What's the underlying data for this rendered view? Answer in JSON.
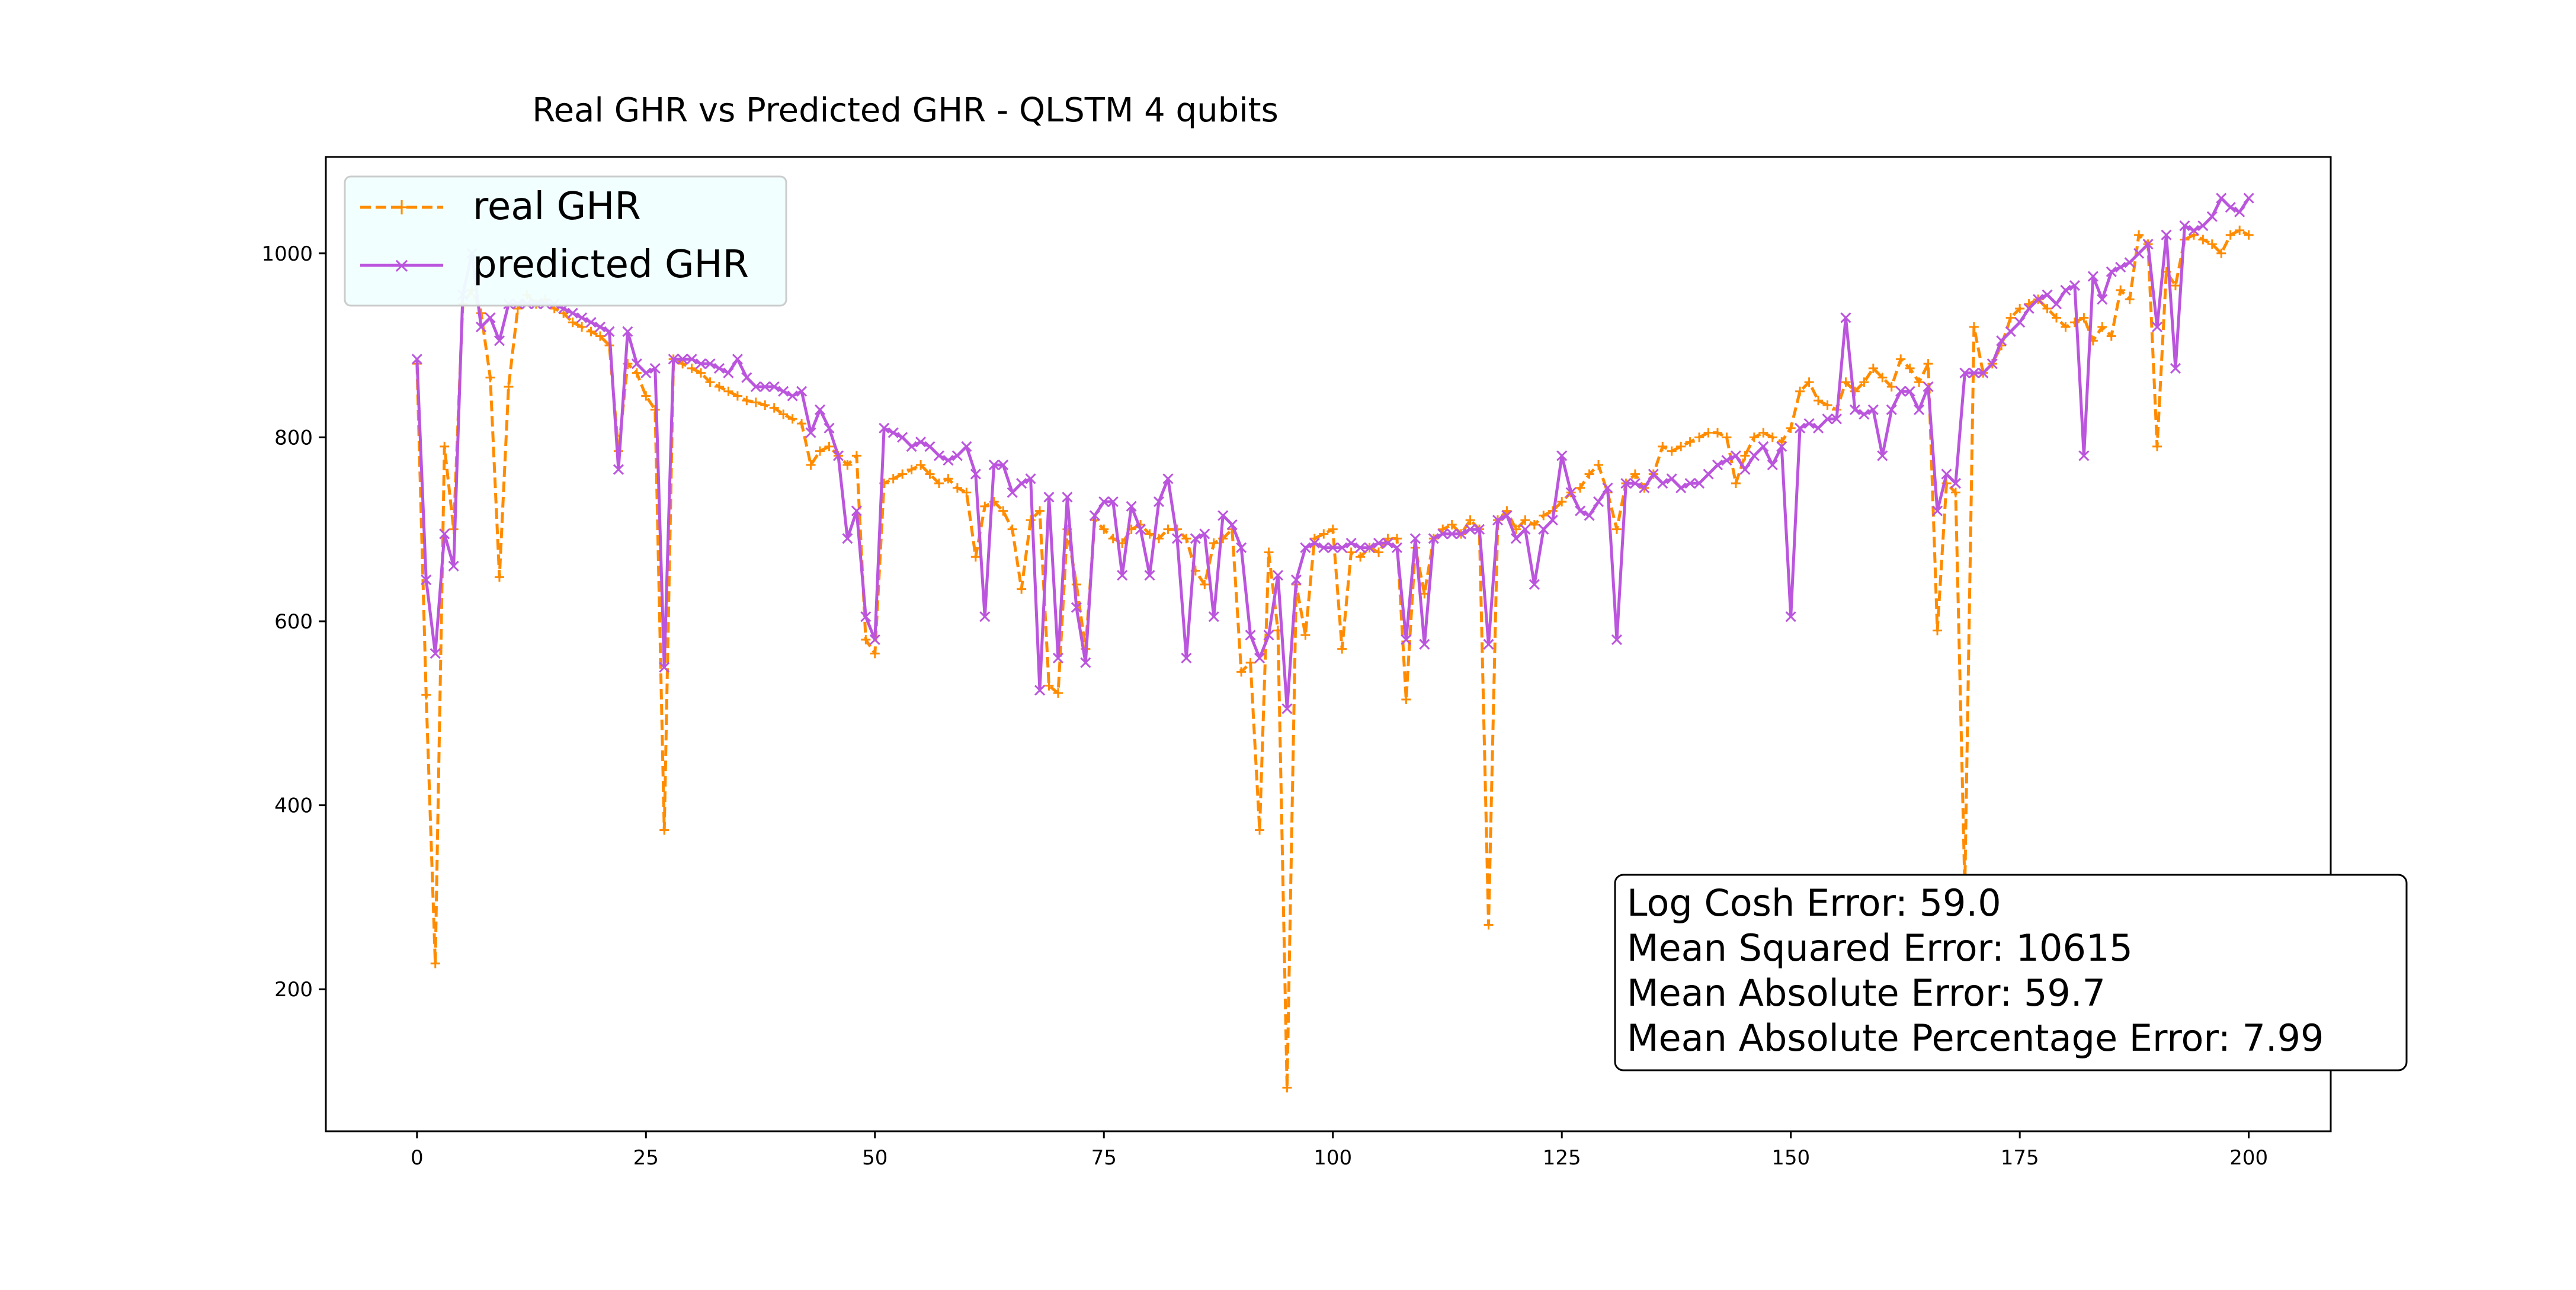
{
  "chart_data": {
    "type": "line",
    "title": "Real GHR vs Predicted GHR - QLSTM 4 qubits",
    "xlabel": "",
    "ylabel": "",
    "xlim": [
      -9.95,
      208.95
    ],
    "ylim": [
      45.6,
      1104.8
    ],
    "xticks": [
      0,
      25,
      50,
      75,
      100,
      125,
      150,
      175,
      200
    ],
    "yticks": [
      200,
      400,
      600,
      800,
      1000
    ],
    "grid": false,
    "legend_position": "upper left",
    "series": [
      {
        "name": "real GHR",
        "color": "#ff8c00",
        "linestyle": "dashed",
        "marker": "+",
        "values": [
          880,
          520,
          228,
          790,
          700,
          945,
          960,
          935,
          865,
          648,
          855,
          940,
          955,
          945,
          950,
          940,
          935,
          925,
          920,
          915,
          910,
          900,
          785,
          880,
          870,
          845,
          830,
          373,
          885,
          880,
          875,
          870,
          860,
          855,
          850,
          845,
          840,
          838,
          835,
          832,
          825,
          820,
          815,
          770,
          785,
          790,
          780,
          770,
          780,
          580,
          565,
          750,
          755,
          760,
          765,
          770,
          760,
          750,
          755,
          745,
          740,
          670,
          725,
          730,
          720,
          700,
          635,
          710,
          720,
          530,
          522,
          700,
          640,
          570,
          710,
          700,
          690,
          685,
          700,
          705,
          695,
          690,
          700,
          700,
          690,
          655,
          640,
          685,
          690,
          700,
          545,
          555,
          373,
          675,
          590,
          93,
          640,
          585,
          690,
          695,
          700,
          570,
          675,
          670,
          680,
          675,
          690,
          690,
          515,
          680,
          630,
          690,
          700,
          705,
          695,
          710,
          700,
          270,
          710,
          720,
          700,
          710,
          705,
          715,
          720,
          730,
          740,
          745,
          760,
          770,
          740,
          700,
          750,
          760,
          745,
          760,
          790,
          785,
          790,
          795,
          800,
          805,
          805,
          800,
          750,
          780,
          800,
          805,
          800,
          795,
          810,
          850,
          860,
          840,
          835,
          830,
          860,
          850,
          860,
          875,
          865,
          855,
          885,
          875,
          860,
          880,
          590,
          750,
          740,
          310,
          920,
          870,
          880,
          900,
          930,
          940,
          945,
          950,
          940,
          930,
          920,
          925,
          930,
          905,
          920,
          910,
          960,
          950,
          1020,
          1010,
          790,
          980,
          965,
          1015,
          1020,
          1015,
          1010,
          1000,
          1020,
          1025,
          1020
        ]
      },
      {
        "name": "predicted GHR",
        "color": "#bb55dd",
        "linestyle": "solid",
        "marker": "x",
        "values": [
          885,
          645,
          565,
          695,
          660,
          955,
          1000,
          920,
          930,
          905,
          945,
          945,
          945,
          945,
          945,
          945,
          940,
          935,
          930,
          925,
          920,
          915,
          765,
          915,
          880,
          870,
          875,
          550,
          885,
          885,
          885,
          880,
          880,
          875,
          870,
          885,
          865,
          855,
          855,
          855,
          850,
          845,
          850,
          805,
          830,
          810,
          780,
          690,
          720,
          605,
          580,
          810,
          805,
          800,
          790,
          795,
          790,
          780,
          775,
          780,
          790,
          760,
          605,
          770,
          770,
          740,
          750,
          755,
          525,
          735,
          560,
          735,
          615,
          555,
          715,
          730,
          730,
          650,
          725,
          700,
          650,
          730,
          755,
          690,
          560,
          690,
          695,
          605,
          715,
          705,
          680,
          585,
          560,
          585,
          650,
          505,
          645,
          680,
          685,
          680,
          680,
          680,
          685,
          680,
          680,
          685,
          685,
          680,
          580,
          690,
          575,
          690,
          695,
          695,
          695,
          700,
          700,
          575,
          710,
          715,
          690,
          700,
          640,
          700,
          710,
          780,
          740,
          720,
          715,
          730,
          745,
          580,
          750,
          750,
          745,
          760,
          750,
          755,
          745,
          750,
          750,
          760,
          770,
          775,
          780,
          765,
          780,
          790,
          770,
          790,
          605,
          810,
          815,
          810,
          820,
          820,
          930,
          830,
          825,
          830,
          780,
          830,
          850,
          850,
          830,
          855,
          720,
          760,
          750,
          870,
          870,
          870,
          880,
          905,
          915,
          925,
          940,
          950,
          955,
          945,
          960,
          965,
          780,
          975,
          950,
          980,
          985,
          990,
          1000,
          1010,
          920,
          1020,
          875,
          1030,
          1025,
          1030,
          1040,
          1060,
          1050,
          1045,
          1060
        ]
      }
    ],
    "annotation_lines": [
      "Log Cosh Error: 59.0",
      "Mean Squared Error: 10615",
      "Mean Absolute Error: 59.7",
      "Mean Absolute Percentage Error: 7.99"
    ]
  }
}
